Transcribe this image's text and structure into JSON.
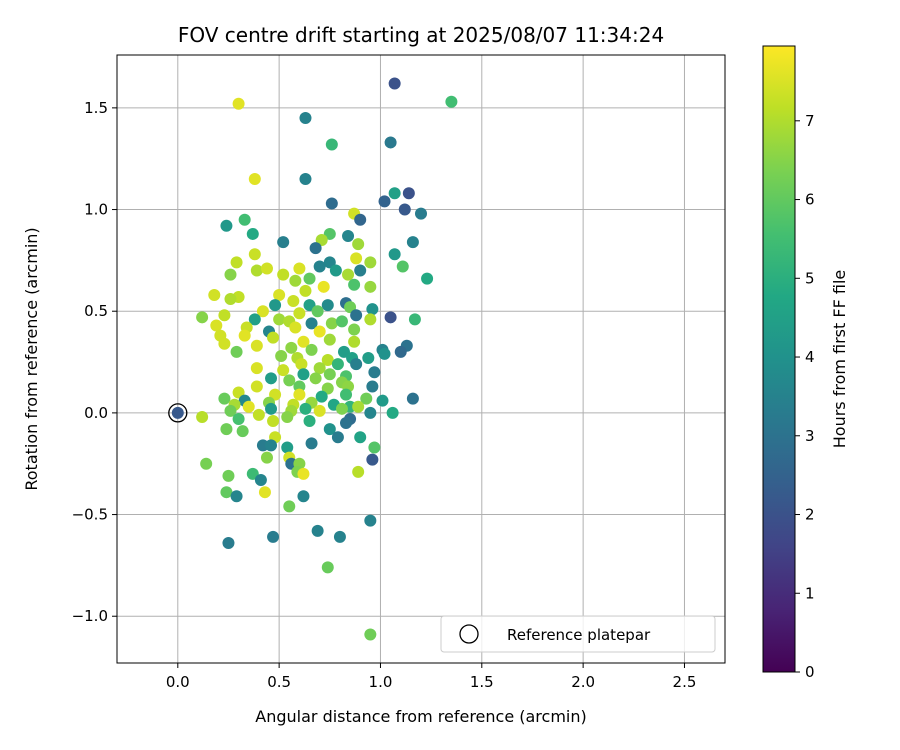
{
  "chart_data": {
    "type": "scatter",
    "title": "FOV centre drift starting at 2025/08/07 11:34:24",
    "xlabel": "Angular distance from reference (arcmin)",
    "ylabel": "Rotation from reference (arcmin)",
    "xlim": [
      -0.3,
      2.7
    ],
    "ylim": [
      -1.23,
      1.76
    ],
    "x_ticks": [
      0.0,
      0.5,
      1.0,
      1.5,
      2.0,
      2.5
    ],
    "x_tick_labels": [
      "0.0",
      "0.5",
      "1.0",
      "1.5",
      "2.0",
      "2.5"
    ],
    "y_ticks": [
      -1.0,
      -0.5,
      0.0,
      0.5,
      1.0,
      1.5
    ],
    "y_tick_labels": [
      "−1.0",
      "−0.5",
      "0.0",
      "0.5",
      "1.0",
      "1.5"
    ],
    "grid": true,
    "legend": {
      "position": "bottom-right",
      "entries": [
        "Reference platepar"
      ]
    },
    "reference_point": {
      "x": 0.0,
      "y": 0.0
    },
    "colorbar": {
      "label": "Hours from first FF file",
      "range": [
        0,
        7.95
      ],
      "ticks": [
        0,
        1,
        2,
        3,
        4,
        5,
        6,
        7
      ],
      "tick_labels": [
        "0",
        "1",
        "2",
        "3",
        "4",
        "5",
        "6",
        "7"
      ],
      "colormap": "viridis"
    },
    "points": [
      [
        1.07,
        1.62,
        2.0
      ],
      [
        1.35,
        1.53,
        5.5
      ],
      [
        0.3,
        1.52,
        7.6
      ],
      [
        0.63,
        1.45,
        3.5
      ],
      [
        0.76,
        1.32,
        5.3
      ],
      [
        1.05,
        1.33,
        3.2
      ],
      [
        0.38,
        1.15,
        7.6
      ],
      [
        0.63,
        1.15,
        3.5
      ],
      [
        1.07,
        1.08,
        4.5
      ],
      [
        1.14,
        1.08,
        2.0
      ],
      [
        1.02,
        1.04,
        2.5
      ],
      [
        0.76,
        1.03,
        2.8
      ],
      [
        1.12,
        1.0,
        2.2
      ],
      [
        1.2,
        0.98,
        3.3
      ],
      [
        0.87,
        0.98,
        7.4
      ],
      [
        0.9,
        0.95,
        2.6
      ],
      [
        0.33,
        0.95,
        5.5
      ],
      [
        0.24,
        0.92,
        4.2
      ],
      [
        0.37,
        0.88,
        4.8
      ],
      [
        0.75,
        0.88,
        5.8
      ],
      [
        0.84,
        0.87,
        3.6
      ],
      [
        0.52,
        0.84,
        3.4
      ],
      [
        0.71,
        0.85,
        6.9
      ],
      [
        0.89,
        0.83,
        6.8
      ],
      [
        1.16,
        0.84,
        3.5
      ],
      [
        0.68,
        0.81,
        3.0
      ],
      [
        0.38,
        0.78,
        7.3
      ],
      [
        1.07,
        0.78,
        4.2
      ],
      [
        0.29,
        0.74,
        7.2
      ],
      [
        0.75,
        0.74,
        3.6
      ],
      [
        0.95,
        0.74,
        6.8
      ],
      [
        0.88,
        0.76,
        7.5
      ],
      [
        0.39,
        0.7,
        7.0
      ],
      [
        0.44,
        0.71,
        7.4
      ],
      [
        0.6,
        0.71,
        7.5
      ],
      [
        0.7,
        0.72,
        3.5
      ],
      [
        0.78,
        0.7,
        4.3
      ],
      [
        0.9,
        0.7,
        3.4
      ],
      [
        1.11,
        0.72,
        5.8
      ],
      [
        0.26,
        0.68,
        6.5
      ],
      [
        0.52,
        0.68,
        7.2
      ],
      [
        0.58,
        0.65,
        6.8
      ],
      [
        0.65,
        0.66,
        6.0
      ],
      [
        0.84,
        0.68,
        6.9
      ],
      [
        1.23,
        0.66,
        4.8
      ],
      [
        0.63,
        0.6,
        7.2
      ],
      [
        0.72,
        0.62,
        7.7
      ],
      [
        0.87,
        0.63,
        5.7
      ],
      [
        0.95,
        0.62,
        6.7
      ],
      [
        0.18,
        0.58,
        7.4
      ],
      [
        0.3,
        0.57,
        7.2
      ],
      [
        0.5,
        0.58,
        7.5
      ],
      [
        0.57,
        0.55,
        7.3
      ],
      [
        0.26,
        0.56,
        7.0
      ],
      [
        0.48,
        0.53,
        4.2
      ],
      [
        0.65,
        0.53,
        4.5
      ],
      [
        0.74,
        0.53,
        3.8
      ],
      [
        0.83,
        0.54,
        2.9
      ],
      [
        0.85,
        0.52,
        6.2
      ],
      [
        0.96,
        0.51,
        4.0
      ],
      [
        0.42,
        0.5,
        7.5
      ],
      [
        0.6,
        0.49,
        7.3
      ],
      [
        0.69,
        0.5,
        6.0
      ],
      [
        0.88,
        0.48,
        3.0
      ],
      [
        1.05,
        0.47,
        2.0
      ],
      [
        0.12,
        0.47,
        6.5
      ],
      [
        0.23,
        0.48,
        7.2
      ],
      [
        0.38,
        0.46,
        4.5
      ],
      [
        0.5,
        0.46,
        6.8
      ],
      [
        0.55,
        0.45,
        7.0
      ],
      [
        0.66,
        0.44,
        3.5
      ],
      [
        0.76,
        0.44,
        6.5
      ],
      [
        0.81,
        0.45,
        5.8
      ],
      [
        0.95,
        0.46,
        7.0
      ],
      [
        1.17,
        0.46,
        5.3
      ],
      [
        0.19,
        0.43,
        7.5
      ],
      [
        0.34,
        0.42,
        7.3
      ],
      [
        0.45,
        0.4,
        3.6
      ],
      [
        0.58,
        0.42,
        7.5
      ],
      [
        0.7,
        0.4,
        7.7
      ],
      [
        0.87,
        0.41,
        6.4
      ],
      [
        0.21,
        0.38,
        7.4
      ],
      [
        0.33,
        0.38,
        7.6
      ],
      [
        0.47,
        0.37,
        7.2
      ],
      [
        0.62,
        0.35,
        7.6
      ],
      [
        0.75,
        0.36,
        6.8
      ],
      [
        0.87,
        0.35,
        7.0
      ],
      [
        1.13,
        0.33,
        3.0
      ],
      [
        0.23,
        0.34,
        7.4
      ],
      [
        0.39,
        0.33,
        7.5
      ],
      [
        0.56,
        0.32,
        6.6
      ],
      [
        0.66,
        0.31,
        6.4
      ],
      [
        0.82,
        0.3,
        4.4
      ],
      [
        1.01,
        0.31,
        3.5
      ],
      [
        1.1,
        0.3,
        2.7
      ],
      [
        0.29,
        0.3,
        6.2
      ],
      [
        0.51,
        0.28,
        6.5
      ],
      [
        0.59,
        0.27,
        7.0
      ],
      [
        0.74,
        0.26,
        7.1
      ],
      [
        0.86,
        0.27,
        4.5
      ],
      [
        0.94,
        0.27,
        4.4
      ],
      [
        1.02,
        0.29,
        4.0
      ],
      [
        0.61,
        0.24,
        7.3
      ],
      [
        0.7,
        0.22,
        6.8
      ],
      [
        0.79,
        0.24,
        5.2
      ],
      [
        0.88,
        0.24,
        3.4
      ],
      [
        0.39,
        0.22,
        7.5
      ],
      [
        0.52,
        0.21,
        7.3
      ],
      [
        0.62,
        0.19,
        4.5
      ],
      [
        0.75,
        0.19,
        6.3
      ],
      [
        0.83,
        0.18,
        5.7
      ],
      [
        0.97,
        0.2,
        3.3
      ],
      [
        0.46,
        0.17,
        4.4
      ],
      [
        0.55,
        0.16,
        6.3
      ],
      [
        0.68,
        0.17,
        6.5
      ],
      [
        0.81,
        0.15,
        6.5
      ],
      [
        0.39,
        0.13,
        7.4
      ],
      [
        0.6,
        0.13,
        6.0
      ],
      [
        0.74,
        0.12,
        6.5
      ],
      [
        0.84,
        0.13,
        6.6
      ],
      [
        0.96,
        0.13,
        3.3
      ],
      [
        0.3,
        0.1,
        7.3
      ],
      [
        0.48,
        0.09,
        7.4
      ],
      [
        0.6,
        0.09,
        7.6
      ],
      [
        0.71,
        0.08,
        4.8
      ],
      [
        0.83,
        0.09,
        5.5
      ],
      [
        0.93,
        0.07,
        6.2
      ],
      [
        1.16,
        0.07,
        3.0
      ],
      [
        0.23,
        0.07,
        6.1
      ],
      [
        0.33,
        0.06,
        3.7
      ],
      [
        0.45,
        0.05,
        6.5
      ],
      [
        0.57,
        0.04,
        7.2
      ],
      [
        0.66,
        0.05,
        6.7
      ],
      [
        0.77,
        0.04,
        4.7
      ],
      [
        0.85,
        0.03,
        5.2
      ],
      [
        1.01,
        0.06,
        4.3
      ],
      [
        0.28,
        0.04,
        6.9
      ],
      [
        0.35,
        0.03,
        7.6
      ],
      [
        0.46,
        0.02,
        4.3
      ],
      [
        0.56,
        0.01,
        6.8
      ],
      [
        0.63,
        0.02,
        5.0
      ],
      [
        0.7,
        0.01,
        7.5
      ],
      [
        0.81,
        0.02,
        6.4
      ],
      [
        0.89,
        0.03,
        6.9
      ],
      [
        0.95,
        0.0,
        3.6
      ],
      [
        1.06,
        0.0,
        4.8
      ],
      [
        0.12,
        -0.02,
        7.1
      ],
      [
        0.26,
        0.01,
        6.2
      ],
      [
        0.4,
        -0.01,
        7.2
      ],
      [
        0.54,
        -0.02,
        6.5
      ],
      [
        0.65,
        -0.04,
        5.0
      ],
      [
        0.85,
        -0.03,
        2.8
      ],
      [
        0.3,
        -0.03,
        5.6
      ],
      [
        0.47,
        -0.04,
        7.2
      ],
      [
        0.75,
        -0.08,
        4.0
      ],
      [
        0.83,
        -0.05,
        3.0
      ],
      [
        0.24,
        -0.08,
        6.2
      ],
      [
        0.32,
        -0.09,
        6.1
      ],
      [
        0.48,
        -0.12,
        7.3
      ],
      [
        0.66,
        -0.15,
        3.3
      ],
      [
        0.79,
        -0.12,
        3.3
      ],
      [
        0.9,
        -0.12,
        4.6
      ],
      [
        0.42,
        -0.16,
        3.3
      ],
      [
        0.46,
        -0.16,
        3.5
      ],
      [
        0.54,
        -0.17,
        4.4
      ],
      [
        0.97,
        -0.17,
        5.8
      ],
      [
        0.44,
        -0.22,
        6.5
      ],
      [
        0.55,
        -0.22,
        7.4
      ],
      [
        0.56,
        -0.25,
        3.0
      ],
      [
        0.6,
        -0.25,
        6.5
      ],
      [
        0.96,
        -0.23,
        2.2
      ],
      [
        0.14,
        -0.25,
        6.3
      ],
      [
        0.59,
        -0.29,
        6.4
      ],
      [
        0.62,
        -0.3,
        7.7
      ],
      [
        0.89,
        -0.29,
        7.1
      ],
      [
        0.25,
        -0.31,
        6.2
      ],
      [
        0.37,
        -0.3,
        5.4
      ],
      [
        0.41,
        -0.33,
        3.6
      ],
      [
        0.43,
        -0.39,
        7.6
      ],
      [
        0.24,
        -0.39,
        6.0
      ],
      [
        0.29,
        -0.41,
        3.6
      ],
      [
        0.62,
        -0.41,
        3.6
      ],
      [
        0.55,
        -0.46,
        6.2
      ],
      [
        0.95,
        -0.53,
        3.5
      ],
      [
        0.69,
        -0.58,
        3.5
      ],
      [
        0.8,
        -0.61,
        3.5
      ],
      [
        0.47,
        -0.61,
        3.3
      ],
      [
        0.25,
        -0.64,
        3.3
      ],
      [
        0.74,
        -0.76,
        6.1
      ],
      [
        0.95,
        -1.09,
        6.2
      ]
    ]
  }
}
